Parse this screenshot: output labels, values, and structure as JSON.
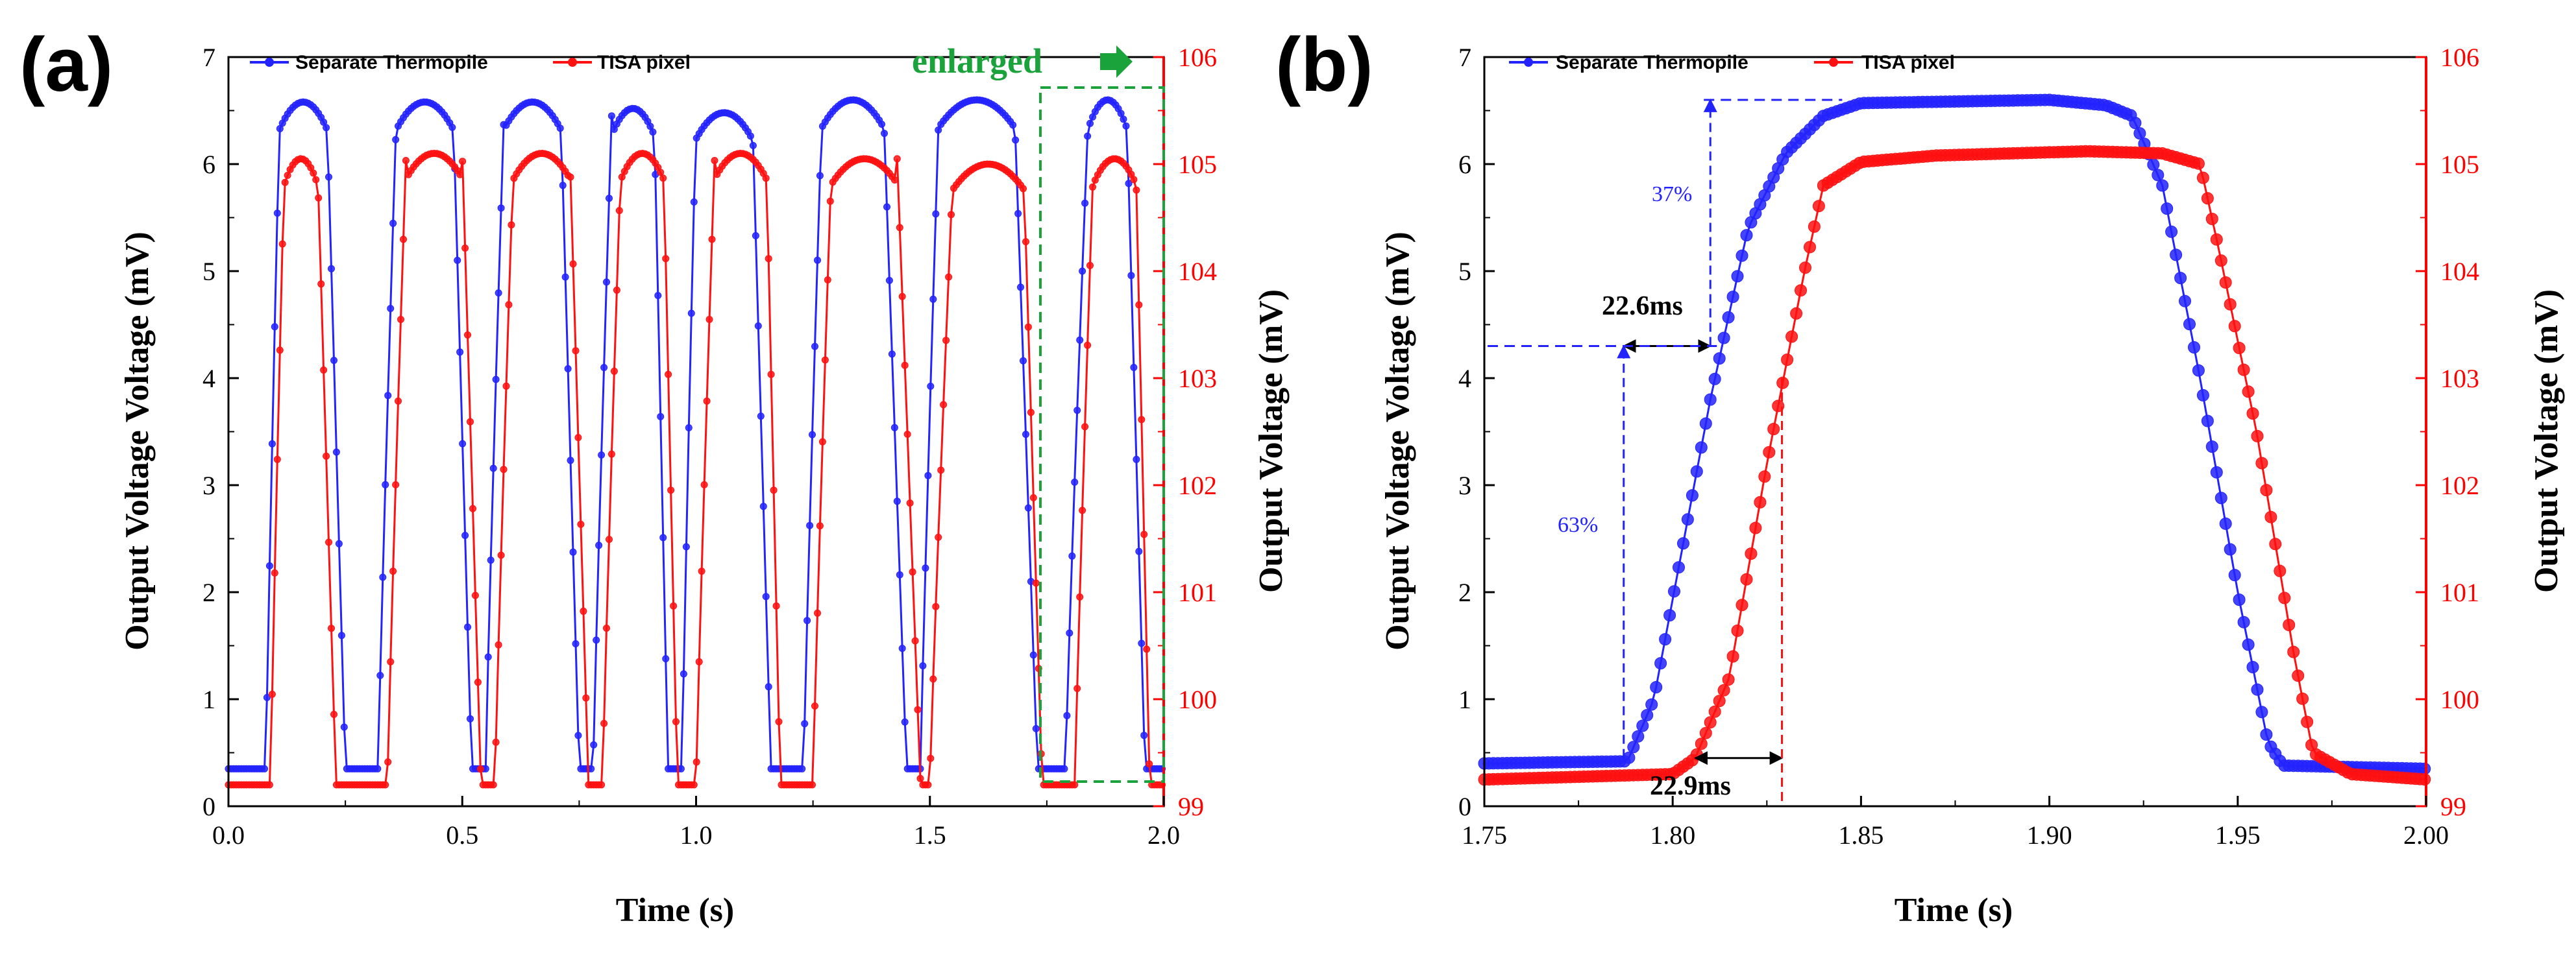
{
  "colors": {
    "thermopile": "#2323ff",
    "tisa": "#ff1111",
    "right_axis": "#ff0000",
    "highlight": "#1aa33a",
    "annotation_blue": "#2222ff"
  },
  "panels": [
    {
      "letter": "(a)",
      "legend": [
        "Separate Thermopile",
        "TISA pixel"
      ],
      "enlarged_label": "enlarged",
      "xlabel": "Time (s)",
      "ylabel": "Output Voltage Voltage (mV)",
      "y2label": "Output Voltage (mV)",
      "xlim": [
        0.0,
        2.0
      ],
      "ylim": [
        0,
        7
      ],
      "y2lim": [
        99,
        106
      ],
      "x_ticks": [
        "0.0",
        "0.5",
        "1.0",
        "1.5",
        "2.0"
      ],
      "y_ticks": [
        "0",
        "1",
        "2",
        "3",
        "4",
        "5",
        "6",
        "7"
      ],
      "y2_ticks": [
        "99",
        "100",
        "101",
        "102",
        "103",
        "104",
        "105",
        "106"
      ]
    },
    {
      "letter": "(b)",
      "legend": [
        "Separate Thermopile",
        "TISA pixel"
      ],
      "xlabel": "Time (s)",
      "ylabel": "Output Voltage Voltage (mV)",
      "y2label": "Output Voltage (mV)",
      "xlim": [
        1.75,
        2.0
      ],
      "ylim": [
        0,
        7
      ],
      "y2lim": [
        99,
        106
      ],
      "x_ticks": [
        "1.75",
        "1.80",
        "1.85",
        "1.90",
        "1.95",
        "2.00"
      ],
      "y_ticks": [
        "0",
        "1",
        "2",
        "3",
        "4",
        "5",
        "6",
        "7"
      ],
      "y2_ticks": [
        "99",
        "100",
        "101",
        "102",
        "103",
        "104",
        "105",
        "106"
      ],
      "annotations": {
        "pct_top": "37%",
        "pct_bottom": "63%",
        "time_upper": "22.6ms",
        "time_lower": "22.9ms"
      }
    }
  ],
  "chart_data": [
    {
      "type": "line",
      "title": "",
      "xlabel": "Time (s)",
      "ylabel": "Output Voltage Voltage (mV)",
      "y2label": "Output Voltage (mV)",
      "xlim": [
        0.0,
        2.0
      ],
      "ylim": [
        0,
        7
      ],
      "y2lim": [
        99,
        106
      ],
      "legend": "top-left",
      "series": [
        {
          "name": "Separate Thermopile",
          "axis": "left",
          "low": 0.35,
          "pulses": [
            {
              "rise_start": 0.08,
              "rise_end": 0.11,
              "fall_start": 0.21,
              "fall_end": 0.25,
              "peak": 6.58
            },
            {
              "rise_start": 0.32,
              "rise_end": 0.36,
              "fall_start": 0.48,
              "fall_end": 0.52,
              "peak": 6.58
            },
            {
              "rise_start": 0.55,
              "rise_end": 0.59,
              "fall_start": 0.71,
              "fall_end": 0.75,
              "peak": 6.58
            },
            {
              "rise_start": 0.78,
              "rise_end": 0.82,
              "fall_start": 0.91,
              "fall_end": 0.94,
              "peak": 6.52
            },
            {
              "rise_start": 0.97,
              "rise_end": 1.0,
              "fall_start": 1.12,
              "fall_end": 1.16,
              "peak": 6.48
            },
            {
              "rise_start": 1.23,
              "rise_end": 1.27,
              "fall_start": 1.4,
              "fall_end": 1.45,
              "peak": 6.6
            },
            {
              "rise_start": 1.48,
              "rise_end": 1.52,
              "fall_start": 1.68,
              "fall_end": 1.73,
              "peak": 6.6
            },
            {
              "rise_start": 1.79,
              "rise_end": 1.84,
              "fall_start": 1.92,
              "fall_end": 1.96,
              "peak": 6.6
            }
          ]
        },
        {
          "name": "TISA pixel",
          "axis": "right",
          "low": 99.2,
          "pulses": [
            {
              "rise_start": 0.09,
              "rise_end": 0.12,
              "fall_start": 0.19,
              "fall_end": 0.23,
              "peak": 105.05
            },
            {
              "rise_start": 0.34,
              "rise_end": 0.38,
              "fall_start": 0.5,
              "fall_end": 0.54,
              "peak": 105.1
            },
            {
              "rise_start": 0.57,
              "rise_end": 0.61,
              "fall_start": 0.73,
              "fall_end": 0.77,
              "peak": 105.1
            },
            {
              "rise_start": 0.8,
              "rise_end": 0.84,
              "fall_start": 0.93,
              "fall_end": 0.96,
              "peak": 105.1
            },
            {
              "rise_start": 1.0,
              "rise_end": 1.04,
              "fall_start": 1.15,
              "fall_end": 1.18,
              "peak": 105.1
            },
            {
              "rise_start": 1.25,
              "rise_end": 1.29,
              "fall_start": 1.43,
              "fall_end": 1.48,
              "peak": 105.05
            },
            {
              "rise_start": 1.5,
              "rise_end": 1.55,
              "fall_start": 1.7,
              "fall_end": 1.74,
              "peak": 105.0
            },
            {
              "rise_start": 1.81,
              "rise_end": 1.85,
              "fall_start": 1.94,
              "fall_end": 1.97,
              "peak": 105.05
            }
          ]
        }
      ],
      "highlight_box": {
        "label": "enlarged",
        "x": [
          1.75,
          2.0
        ],
        "y": [
          0,
          7
        ]
      }
    },
    {
      "type": "line",
      "title": "",
      "xlabel": "Time (s)",
      "ylabel": "Output Voltage Voltage (mV)",
      "y2label": "Output Voltage (mV)",
      "xlim": [
        1.75,
        2.0
      ],
      "ylim": [
        0,
        7
      ],
      "y2lim": [
        99,
        106
      ],
      "legend": "top-left",
      "series": [
        {
          "name": "Separate Thermopile",
          "axis": "left",
          "points": [
            [
              1.75,
              0.4
            ],
            [
              1.788,
              0.42
            ],
            [
              1.795,
              1.0
            ],
            [
              1.81,
              3.8
            ],
            [
              1.82,
              5.4
            ],
            [
              1.83,
              6.1
            ],
            [
              1.84,
              6.45
            ],
            [
              1.85,
              6.57
            ],
            [
              1.9,
              6.6
            ],
            [
              1.915,
              6.55
            ],
            [
              1.922,
              6.45
            ],
            [
              1.93,
              5.8
            ],
            [
              1.94,
              4.0
            ],
            [
              1.95,
              2.0
            ],
            [
              1.958,
              0.6
            ],
            [
              1.962,
              0.38
            ],
            [
              2.0,
              0.35
            ]
          ]
        },
        {
          "name": "TISA pixel",
          "axis": "right",
          "points": [
            [
              1.75,
              99.25
            ],
            [
              1.8,
              99.3
            ],
            [
              1.806,
              99.45
            ],
            [
              1.815,
              100.2
            ],
            [
              1.825,
              102.2
            ],
            [
              1.835,
              104.0
            ],
            [
              1.84,
              104.8
            ],
            [
              1.85,
              105.02
            ],
            [
              1.87,
              105.08
            ],
            [
              1.91,
              105.12
            ],
            [
              1.93,
              105.1
            ],
            [
              1.94,
              105.0
            ],
            [
              1.945,
              104.2
            ],
            [
              1.955,
              102.5
            ],
            [
              1.965,
              100.4
            ],
            [
              1.97,
              99.5
            ],
            [
              1.98,
              99.3
            ],
            [
              2.0,
              99.25
            ]
          ]
        }
      ],
      "annotations": [
        {
          "text": "37%",
          "kind": "vertical-arrow",
          "x": 1.81,
          "y": [
            4.3,
            6.6
          ]
        },
        {
          "text": "63%",
          "kind": "vertical-arrow",
          "x": 1.787,
          "y": [
            0.45,
            4.3
          ]
        },
        {
          "text": "22.6ms",
          "kind": "horizontal-arrow",
          "y": 4.3,
          "x": [
            1.787,
            1.81
          ]
        },
        {
          "text": "22.9ms",
          "kind": "horizontal-arrow",
          "y": 0.45,
          "x": [
            1.806,
            1.829
          ]
        }
      ]
    }
  ]
}
